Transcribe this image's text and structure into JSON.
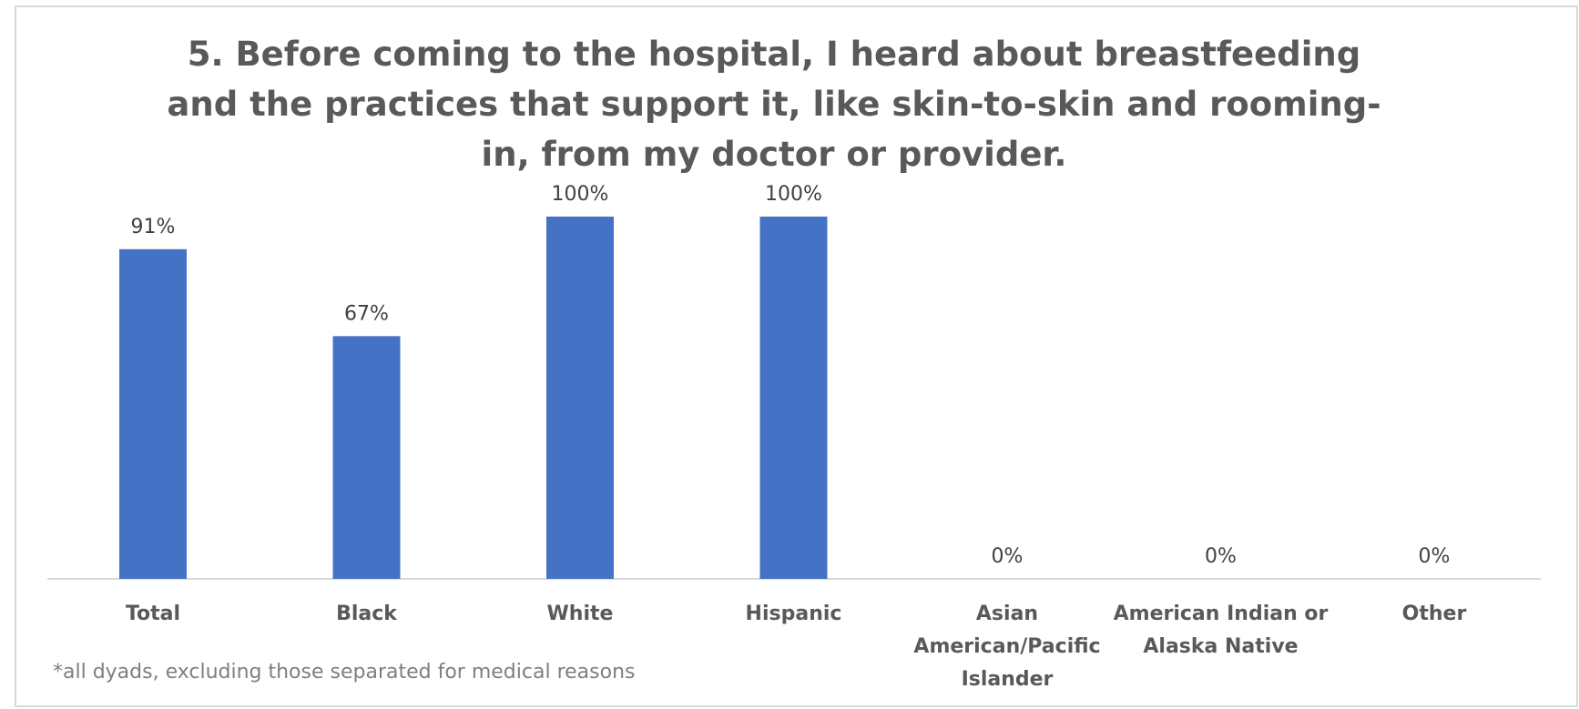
{
  "chart_data": {
    "type": "bar",
    "title": "5. Before coming to the hospital, I heard about breastfeeding and the practices that support it, like skin-to-skin and rooming-in, from my doctor or provider.",
    "categories": [
      "Total",
      "Black",
      "White",
      "Hispanic",
      "Asian American/Pacific Islander",
      "American Indian or Alaska Native",
      "Other"
    ],
    "category_lines": [
      [
        "Total"
      ],
      [
        "Black"
      ],
      [
        "White"
      ],
      [
        "Hispanic"
      ],
      [
        "Asian",
        "American/Pacific",
        "Islander"
      ],
      [
        "American Indian or",
        "Alaska Native"
      ],
      [
        "Other"
      ]
    ],
    "values": [
      91,
      67,
      100,
      100,
      0,
      0,
      0
    ],
    "data_labels": [
      "91%",
      "67%",
      "100%",
      "100%",
      "0%",
      "0%",
      "0%"
    ],
    "ylim": [
      0,
      100
    ],
    "grid": false,
    "legend": "none",
    "bar_color": "#4472c4",
    "footnote": "*all dyads, excluding those separated for medical reasons"
  }
}
